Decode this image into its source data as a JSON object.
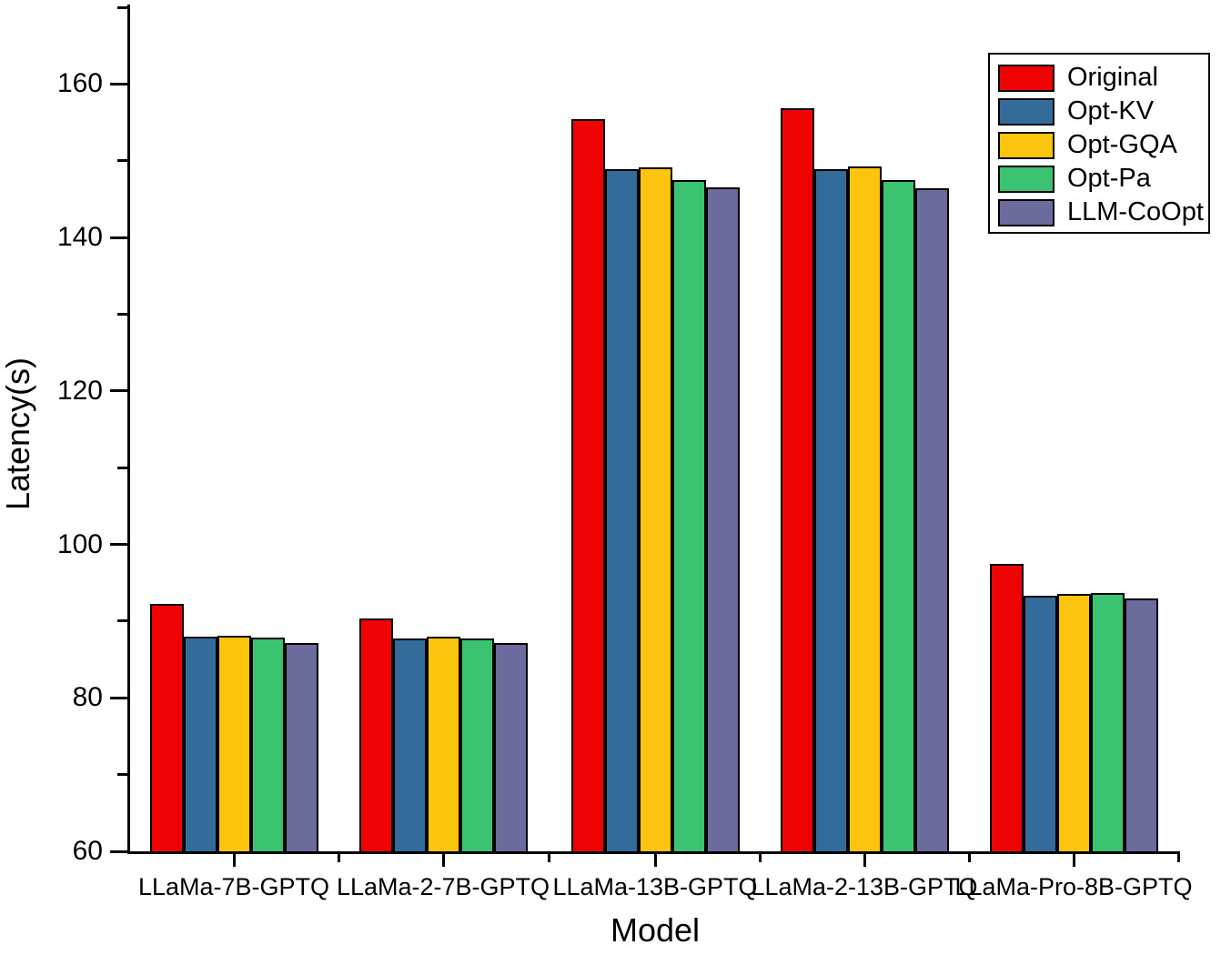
{
  "chart_data": {
    "type": "bar",
    "title": "",
    "xlabel": "Model",
    "ylabel": "Latency(s)",
    "ylim": [
      60,
      170
    ],
    "yticks_major": [
      60,
      80,
      100,
      120,
      140,
      160
    ],
    "yticks_minor": [
      70,
      90,
      110,
      130,
      150,
      170
    ],
    "grid": false,
    "legend_position": "top-right",
    "categories": [
      "LLaMa-7B-GPTQ",
      "LLaMa-2-7B-GPTQ",
      "LLaMa-13B-GPTQ",
      "LLaMa-2-13B-GPTQ",
      "LLaMa-Pro-8B-GPTQ"
    ],
    "series": [
      {
        "name": "Original",
        "color": "#ee0202",
        "values": [
          92.3,
          90.4,
          155.4,
          156.8,
          97.4
        ]
      },
      {
        "name": "Opt-KV",
        "color": "#336b9b",
        "values": [
          88.0,
          87.7,
          148.9,
          148.9,
          93.3
        ]
      },
      {
        "name": "Opt-GQA",
        "color": "#fcc40d",
        "values": [
          88.1,
          88.0,
          149.1,
          149.3,
          93.6
        ]
      },
      {
        "name": "Opt-Pa",
        "color": "#3cc371",
        "values": [
          87.8,
          87.7,
          147.5,
          147.5,
          93.7
        ]
      },
      {
        "name": "LLM-CoOpt",
        "color": "#6c6b9e",
        "values": [
          87.1,
          87.2,
          146.5,
          146.4,
          93.0
        ]
      }
    ],
    "axis_color": "#000000",
    "background_color": "#ffffff"
  }
}
